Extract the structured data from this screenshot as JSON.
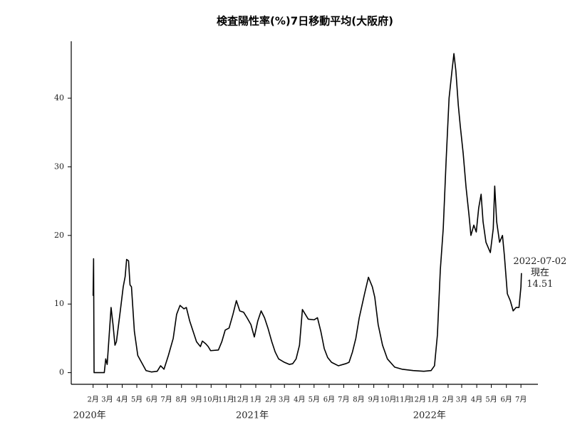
{
  "chart_data": {
    "type": "line",
    "title": "検査陽性率(%)7日移動平均(大阪府)",
    "color": "#000000",
    "x": [
      "2020-02-01",
      "2020-02-02",
      "2020-02-03",
      "2020-02-24",
      "2020-02-27",
      "2020-03-01",
      "2020-03-09",
      "2020-03-13",
      "2020-03-17",
      "2020-03-20",
      "2020-03-28",
      "2020-04-03",
      "2020-04-07",
      "2020-04-10",
      "2020-04-14",
      "2020-04-17",
      "2020-04-20",
      "2020-04-26",
      "2020-05-03",
      "2020-05-13",
      "2020-05-20",
      "2020-05-31",
      "2020-06-12",
      "2020-06-19",
      "2020-06-26",
      "2020-07-05",
      "2020-07-15",
      "2020-07-22",
      "2020-07-29",
      "2020-08-06",
      "2020-08-11",
      "2020-08-18",
      "2020-08-25",
      "2020-09-01",
      "2020-09-09",
      "2020-09-13",
      "2020-09-20",
      "2020-09-25",
      "2020-09-30",
      "2020-10-16",
      "2020-10-23",
      "2020-10-30",
      "2020-11-07",
      "2020-11-15",
      "2020-11-22",
      "2020-11-29",
      "2020-12-07",
      "2020-12-14",
      "2020-12-22",
      "2020-12-29",
      "2021-01-05",
      "2021-01-12",
      "2021-01-19",
      "2021-01-26",
      "2021-02-03",
      "2021-02-10",
      "2021-02-17",
      "2021-03-01",
      "2021-03-11",
      "2021-03-18",
      "2021-03-25",
      "2021-04-01",
      "2021-04-07",
      "2021-04-13",
      "2021-04-19",
      "2021-05-01",
      "2021-05-08",
      "2021-05-15",
      "2021-05-22",
      "2021-05-29",
      "2021-06-06",
      "2021-06-20",
      "2021-07-05",
      "2021-07-12",
      "2021-07-19",
      "2021-07-26",
      "2021-08-02",
      "2021-08-13",
      "2021-08-21",
      "2021-08-29",
      "2021-09-03",
      "2021-09-10",
      "2021-09-19",
      "2021-09-29",
      "2021-10-14",
      "2021-10-29",
      "2021-11-21",
      "2021-12-13",
      "2021-12-28",
      "2022-01-04",
      "2022-01-10",
      "2022-01-16",
      "2022-01-22",
      "2022-01-28",
      "2022-02-03",
      "2022-02-09",
      "2022-02-13",
      "2022-02-17",
      "2022-02-22",
      "2022-02-26",
      "2022-03-04",
      "2022-03-10",
      "2022-03-16",
      "2022-03-20",
      "2022-03-26",
      "2022-03-31",
      "2022-04-05",
      "2022-04-10",
      "2022-04-14",
      "2022-04-20",
      "2022-04-29",
      "2022-05-05",
      "2022-05-08",
      "2022-05-12",
      "2022-05-18",
      "2022-05-24",
      "2022-05-28",
      "2022-06-03",
      "2022-06-09",
      "2022-06-15",
      "2022-06-21",
      "2022-06-27",
      "2022-07-01",
      "2022-07-02"
    ],
    "values": [
      11.2,
      16.6,
      0,
      0,
      2,
      1.2,
      9.5,
      7,
      4,
      4.5,
      9,
      12.5,
      14,
      16.5,
      16.3,
      12.8,
      12.5,
      6,
      2.5,
      1.2,
      0.3,
      0.1,
      0.2,
      1,
      0.5,
      2.5,
      5,
      8.5,
      9.8,
      9.3,
      9.5,
      7.5,
      6,
      4.5,
      3.8,
      4.6,
      4.2,
      3.8,
      3.2,
      3.3,
      4.5,
      6.2,
      6.5,
      8.5,
      10.5,
      9,
      8.8,
      8,
      7,
      5.2,
      7.5,
      9,
      8,
      6.5,
      4.5,
      3,
      2,
      1.5,
      1.2,
      1.3,
      2,
      4,
      9.2,
      8.5,
      7.8,
      7.7,
      8,
      6,
      3.5,
      2.2,
      1.5,
      1,
      1.3,
      1.5,
      3,
      5,
      8,
      11.5,
      13.9,
      12.5,
      11,
      7,
      4,
      2,
      0.8,
      0.5,
      0.3,
      0.2,
      0.3,
      1,
      5.5,
      15,
      21,
      31,
      40,
      44,
      46.5,
      44,
      39,
      36,
      32,
      27,
      23,
      20,
      21.5,
      20.5,
      24,
      26,
      22,
      19,
      17.5,
      21,
      27.2,
      22,
      19,
      20,
      17,
      11.5,
      10.5,
      9,
      9.5,
      9.5,
      12.5,
      14.51
    ],
    "xlim": [
      "2019-12-18",
      "2022-08-05"
    ],
    "ylim": [
      -1.7,
      48.3
    ],
    "yticks": [
      0,
      10,
      20,
      30,
      40
    ],
    "xticks": [
      {
        "value": "2020-02-01",
        "label": "2月"
      },
      {
        "value": "2020-03-01",
        "label": "3月"
      },
      {
        "value": "2020-04-01",
        "label": "4月"
      },
      {
        "value": "2020-05-01",
        "label": "5月"
      },
      {
        "value": "2020-06-01",
        "label": "6月"
      },
      {
        "value": "2020-07-01",
        "label": "7月"
      },
      {
        "value": "2020-08-01",
        "label": "8月"
      },
      {
        "value": "2020-09-01",
        "label": "9月"
      },
      {
        "value": "2020-10-01",
        "label": "10月"
      },
      {
        "value": "2020-11-01",
        "label": "11月"
      },
      {
        "value": "2020-12-01",
        "label": "12月"
      },
      {
        "value": "2021-01-01",
        "label": "1月"
      },
      {
        "value": "2021-02-01",
        "label": "2月"
      },
      {
        "value": "2021-03-01",
        "label": "3月"
      },
      {
        "value": "2021-04-01",
        "label": "4月"
      },
      {
        "value": "2021-05-01",
        "label": "5月"
      },
      {
        "value": "2021-06-01",
        "label": "6月"
      },
      {
        "value": "2021-07-01",
        "label": "7月"
      },
      {
        "value": "2021-08-01",
        "label": "8月"
      },
      {
        "value": "2021-09-01",
        "label": "9月"
      },
      {
        "value": "2021-10-01",
        "label": "10月"
      },
      {
        "value": "2021-11-01",
        "label": "11月"
      },
      {
        "value": "2021-12-01",
        "label": "12月"
      },
      {
        "value": "2022-01-01",
        "label": "1月"
      },
      {
        "value": "2022-02-01",
        "label": "2月"
      },
      {
        "value": "2022-03-01",
        "label": "3月"
      },
      {
        "value": "2022-04-01",
        "label": "4月"
      },
      {
        "value": "2022-05-01",
        "label": "5月"
      },
      {
        "value": "2022-06-01",
        "label": "6月"
      },
      {
        "value": "2022-07-01",
        "label": "7月"
      }
    ],
    "year_labels": [
      {
        "value": "2020-02-01",
        "label": "2020年"
      },
      {
        "value": "2021-01-01",
        "label": "2021年"
      },
      {
        "value": "2022-01-01",
        "label": "2022年"
      }
    ],
    "annotation": {
      "x": "2022-07-02",
      "label": "現在",
      "value": 14.51
    }
  }
}
